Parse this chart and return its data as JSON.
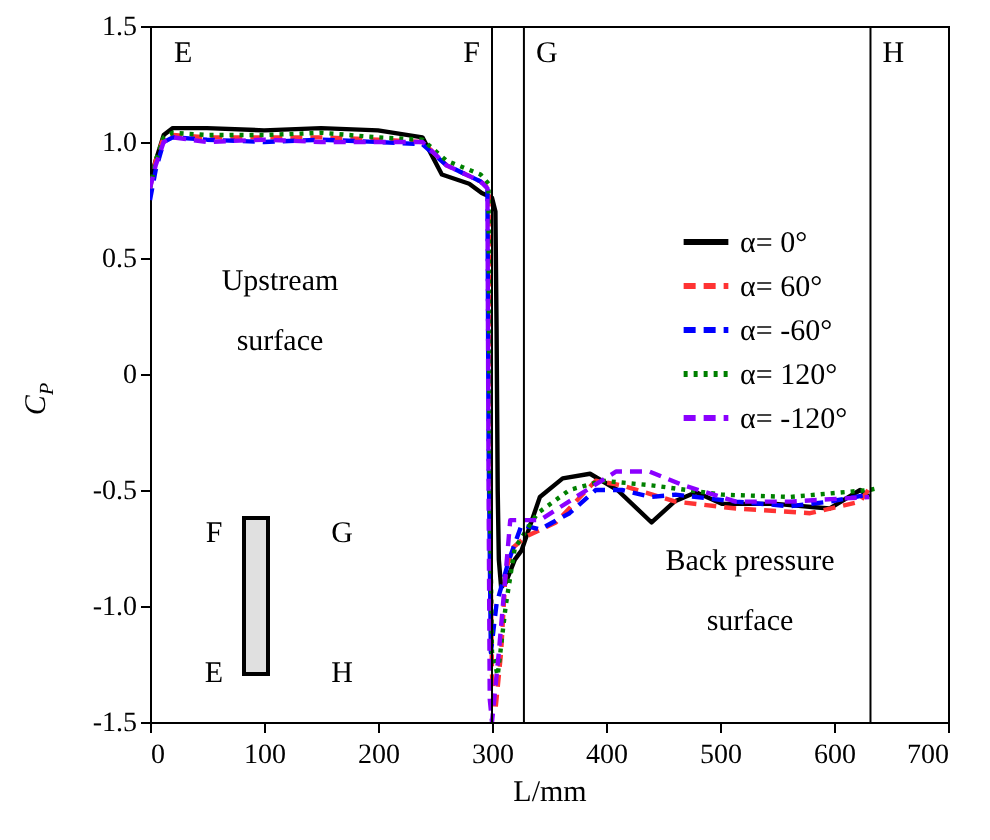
{
  "chart_data": {
    "type": "line",
    "xlabel": "L/mm",
    "ylabel": "C$_{P}$",
    "xlim": [
      0,
      700
    ],
    "ylim": [
      -1.5,
      1.5
    ],
    "xticks": [
      0,
      100,
      200,
      300,
      400,
      500,
      600,
      700
    ],
    "yticks": [
      -1.5,
      {
        "value": -1,
        "label": "-1.0"
      },
      -0.5,
      0,
      0.5,
      {
        "value": 1,
        "label": "1.0"
      },
      1.5
    ],
    "legend": "right",
    "grid": false,
    "ref_lines": [
      {
        "axis": "x",
        "value": 300,
        "label": "F",
        "color": "#000000"
      },
      {
        "axis": "x",
        "value": 328,
        "label": "G",
        "color": "#000000"
      },
      {
        "axis": "x",
        "value": 632,
        "label": "H",
        "color": "#000000"
      }
    ],
    "annotations": [
      "E",
      "Upstream surface",
      "Back pressure surface",
      "F",
      "G",
      "E",
      "H"
    ],
    "series": [
      {
        "name": "α= 0°",
        "color": "#000000",
        "line_style": "solid",
        "x": [
          0,
          5,
          12,
          20,
          50,
          100,
          150,
          200,
          239,
          256,
          280,
          291,
          300,
          303,
          304,
          305,
          306,
          308,
          312,
          320,
          326,
          342,
          362,
          386,
          410,
          440,
          460,
          479,
          502,
          549,
          596,
          623,
          631
        ],
        "values": [
          0.84,
          0.92,
          1.03,
          1.06,
          1.06,
          1.05,
          1.06,
          1.05,
          1.02,
          0.86,
          0.82,
          0.78,
          0.76,
          0.7,
          0.2,
          -0.5,
          -0.8,
          -0.92,
          -0.9,
          -0.8,
          -0.76,
          -0.53,
          -0.45,
          -0.43,
          -0.5,
          -0.64,
          -0.55,
          -0.51,
          -0.56,
          -0.56,
          -0.58,
          -0.5,
          -0.53
        ]
      },
      {
        "name": "α= 60°",
        "color": "#ff3333",
        "line_style": "dashed",
        "x": [
          0,
          5,
          12,
          20,
          50,
          100,
          150,
          200,
          239,
          260,
          290,
          297,
          298,
          300,
          303,
          308,
          312,
          318,
          330,
          356,
          391,
          414,
          461,
          514,
          579,
          623,
          630
        ],
        "values": [
          0.8,
          0.92,
          1.02,
          1.03,
          1.02,
          1.02,
          1.02,
          1.01,
          1.0,
          0.9,
          0.83,
          0.8,
          -0.5,
          -1.3,
          -1.45,
          -1.2,
          -0.85,
          -0.75,
          -0.7,
          -0.64,
          -0.46,
          -0.48,
          -0.55,
          -0.58,
          -0.6,
          -0.55,
          -0.5
        ]
      },
      {
        "name": "α= -60°",
        "color": "#0000ff",
        "line_style": "dashed",
        "x": [
          0,
          5,
          12,
          20,
          50,
          100,
          150,
          200,
          239,
          260,
          290,
          296,
          297,
          299,
          304,
          315,
          326,
          342,
          368,
          391,
          414,
          440,
          461,
          514,
          561,
          596,
          630
        ],
        "values": [
          0.75,
          0.88,
          1.0,
          1.02,
          1.01,
          1.0,
          1.01,
          1.0,
          0.99,
          0.9,
          0.83,
          0.8,
          -0.3,
          -1.2,
          -0.99,
          -0.8,
          -0.65,
          -0.67,
          -0.6,
          -0.5,
          -0.5,
          -0.53,
          -0.52,
          -0.55,
          -0.57,
          -0.55,
          -0.52
        ]
      },
      {
        "name": "α= 120°",
        "color": "#008000",
        "line_style": "dotted",
        "x": [
          0,
          5,
          12,
          20,
          50,
          100,
          150,
          200,
          239,
          260,
          290,
          297,
          298,
          300,
          305,
          312,
          320,
          340,
          368,
          397,
          440,
          502,
          561,
          631,
          640
        ],
        "values": [
          0.8,
          0.92,
          1.02,
          1.04,
          1.03,
          1.03,
          1.04,
          1.02,
          1.01,
          0.92,
          0.86,
          0.82,
          -0.5,
          -1.2,
          -1.3,
          -1.0,
          -0.75,
          -0.6,
          -0.5,
          -0.46,
          -0.48,
          -0.52,
          -0.53,
          -0.5,
          -0.49
        ]
      },
      {
        "name": "α= -120°",
        "color": "#8b00ff",
        "line_style": "dashed",
        "x": [
          0,
          5,
          12,
          20,
          50,
          100,
          150,
          200,
          239,
          260,
          290,
          296,
          297,
          298,
          300,
          306,
          316,
          342,
          380,
          409,
          438,
          468,
          514,
          561,
          631
        ],
        "values": [
          0.8,
          0.9,
          1.0,
          1.02,
          1.0,
          1.01,
          1.0,
          1.0,
          1.0,
          0.9,
          0.83,
          0.8,
          -0.5,
          -1.4,
          -1.5,
          -1.2,
          -0.63,
          -0.63,
          -0.51,
          -0.42,
          -0.42,
          -0.48,
          -0.55,
          -0.55,
          -0.53
        ]
      }
    ]
  }
}
